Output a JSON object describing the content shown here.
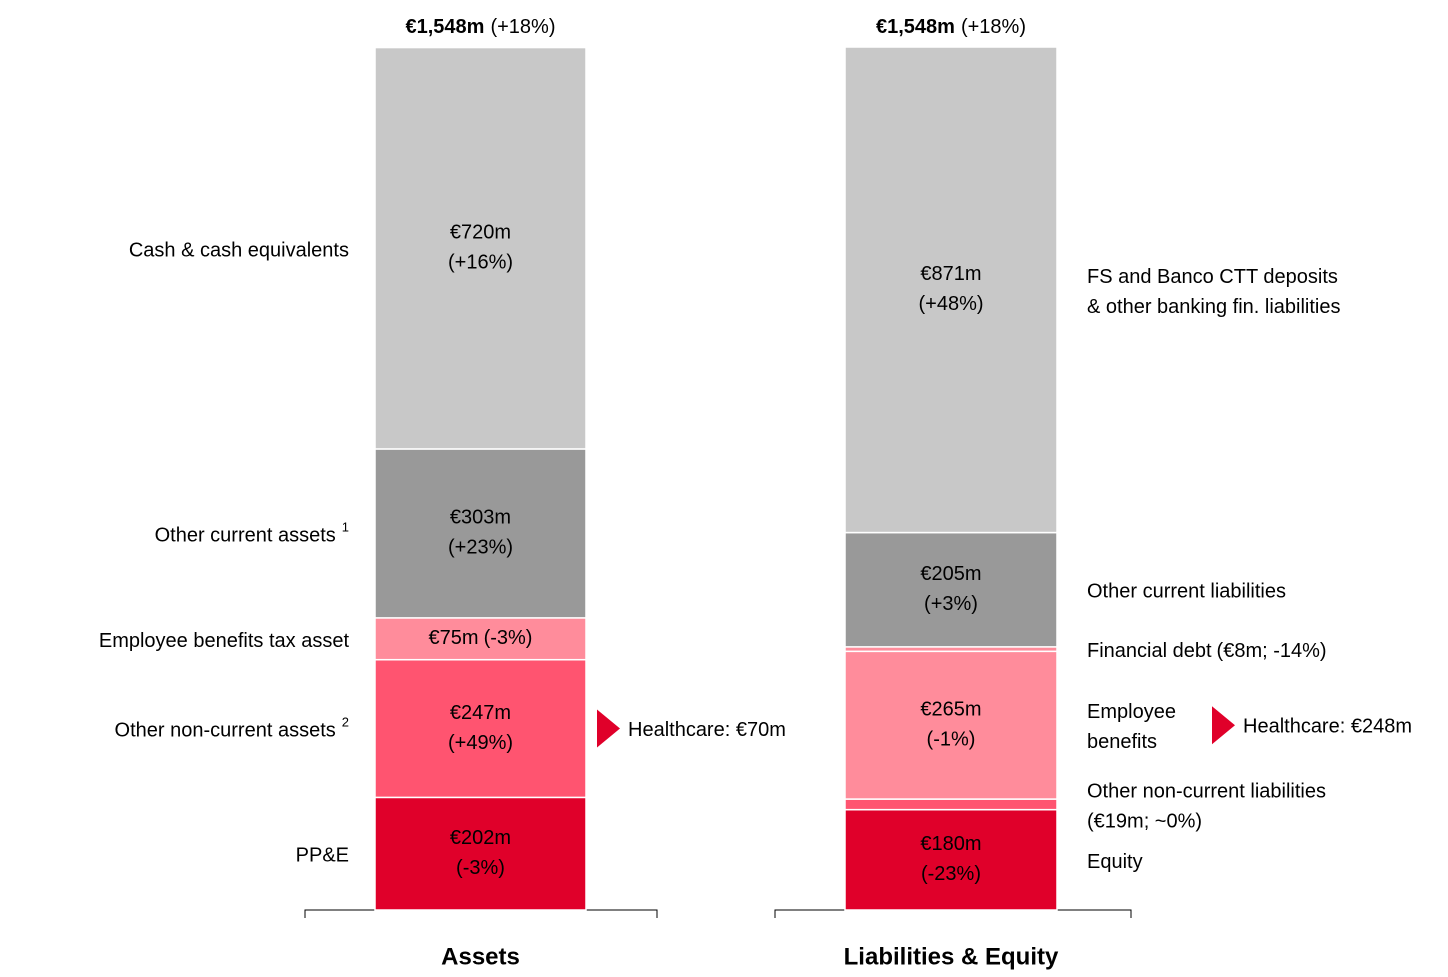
{
  "chart_data": {
    "type": "stacked-bar",
    "ylim": [
      0,
      1548
    ],
    "stacks": [
      {
        "category": "Assets",
        "total_label": "€1,548m",
        "total_change": "(+18%)",
        "segments": [
          {
            "name": "PP&E",
            "value": 202,
            "value_label": "€202m",
            "change_label": "(-3%)",
            "color": "#e0002a",
            "label_color": "#ffffff"
          },
          {
            "name": "Other non-current assets",
            "footnote": "2",
            "value": 247,
            "value_label": "€247m",
            "change_label": "(+49%)",
            "color": "#ff5470",
            "label_color": "#ffffff",
            "callout": "Healthcare: €70m"
          },
          {
            "name": "Employee benefits tax asset",
            "value": 75,
            "value_label": "€75m",
            "change_label": "(-3%)",
            "color": "#ff8c9b",
            "label_color": "#ffffff"
          },
          {
            "name": "Other current assets",
            "footnote": "1",
            "value": 303,
            "value_label": "€303m",
            "change_label": "(+23%)",
            "color": "#999999",
            "label_color": "#ffffff"
          },
          {
            "name": "Cash & cash equivalents",
            "value": 720,
            "value_label": "€720m",
            "change_label": "(+16%)",
            "color": "#c8c8c8",
            "label_color": "#222222"
          }
        ]
      },
      {
        "category": "Liabilities & Equity",
        "total_label": "€1,548m",
        "total_change": "(+18%)",
        "segments": [
          {
            "name": "Equity",
            "value": 180,
            "value_label": "€180m",
            "change_label": "(-23%)",
            "color": "#e0002a",
            "label_color": "#ffffff"
          },
          {
            "name": "Other non-current liabilities",
            "value": 19,
            "value_label": "(€19m; ~0%)",
            "color": "#ff5470",
            "label_color": "#ffffff"
          },
          {
            "name": "Employee\nbenefits",
            "value": 265,
            "value_label": "€265m",
            "change_label": "(-1%)",
            "color": "#ff8c9b",
            "label_color": "#ffffff",
            "callout": "Healthcare: €248m"
          },
          {
            "name": "Financial debt",
            "value": 8,
            "value_label": "(€8m; -14%)",
            "color": "#ff8c9b",
            "label_color": "#ffffff"
          },
          {
            "name": "Other current liabilities",
            "value": 205,
            "value_label": "€205m",
            "change_label": "(+3%)",
            "color": "#999999",
            "label_color": "#ffffff"
          },
          {
            "name": "FS and Banco CTT deposits\n& other banking fin. liabilities",
            "value": 871,
            "value_label": "€871m",
            "change_label": "(+48%)",
            "color": "#c8c8c8",
            "label_color": "#222222"
          }
        ]
      }
    ]
  }
}
